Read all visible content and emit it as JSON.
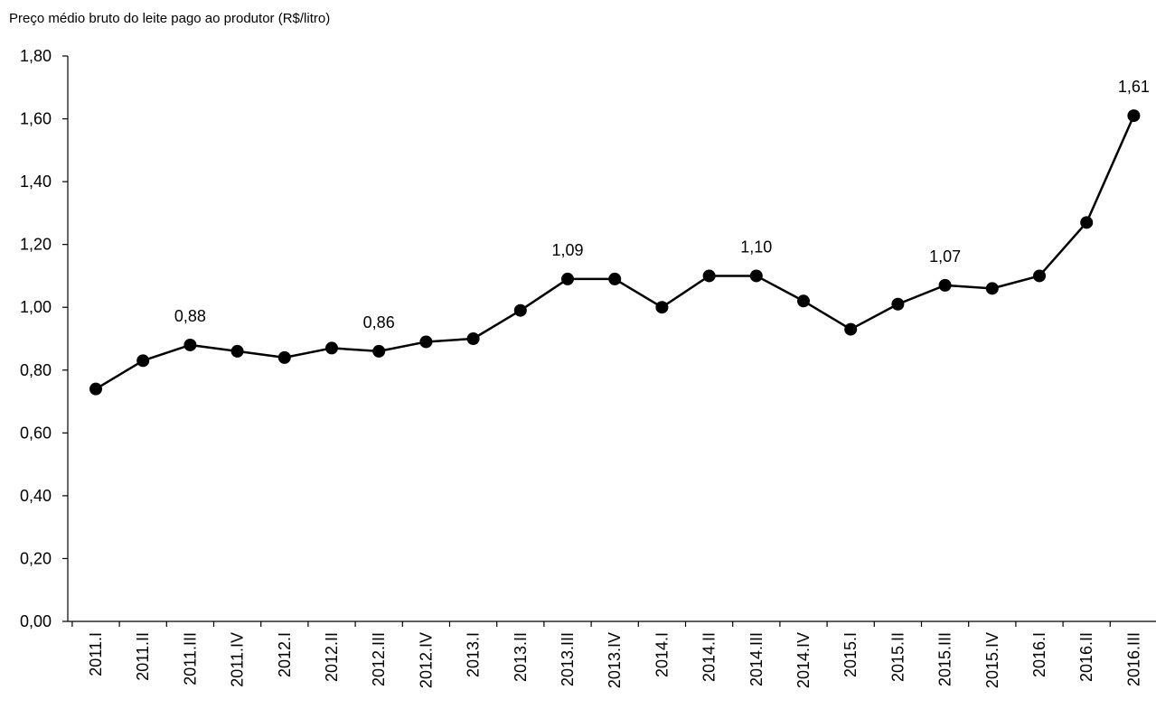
{
  "chart_data": {
    "type": "line",
    "title": "Preço médio bruto do leite pago ao produtor (R$/litro)",
    "xlabel": "",
    "ylabel": "",
    "ylim": [
      0,
      1.8
    ],
    "yticks": [
      "0,00",
      "0,20",
      "0,40",
      "0,60",
      "0,80",
      "1,00",
      "1,20",
      "1,40",
      "1,60",
      "1,80"
    ],
    "ytick_values": [
      0,
      0.2,
      0.4,
      0.6,
      0.8,
      1.0,
      1.2,
      1.4,
      1.6,
      1.8
    ],
    "grid": false,
    "legend": "none",
    "categories": [
      "2011.I",
      "2011.II",
      "2011.III",
      "2011.IV",
      "2012.I",
      "2012.II",
      "2012.III",
      "2012.IV",
      "2013.I",
      "2013.II",
      "2013.III",
      "2013.IV",
      "2014.I",
      "2014.II",
      "2014.III",
      "2014.IV",
      "2015.I",
      "2015.II",
      "2015.III",
      "2015.IV",
      "2016.I",
      "2016.II",
      "2016.III"
    ],
    "values": [
      0.74,
      0.83,
      0.88,
      0.86,
      0.84,
      0.87,
      0.86,
      0.89,
      0.9,
      0.99,
      1.09,
      1.09,
      1.0,
      1.1,
      1.1,
      1.02,
      0.93,
      1.01,
      1.07,
      1.06,
      1.1,
      1.27,
      1.61
    ],
    "data_labels": [
      {
        "index": 2,
        "text": "0,88"
      },
      {
        "index": 6,
        "text": "0,86"
      },
      {
        "index": 10,
        "text": "1,09"
      },
      {
        "index": 14,
        "text": "1,10"
      },
      {
        "index": 18,
        "text": "1,07"
      },
      {
        "index": 22,
        "text": "1,61"
      }
    ],
    "line_color": "#000000",
    "marker_color": "#000000"
  }
}
